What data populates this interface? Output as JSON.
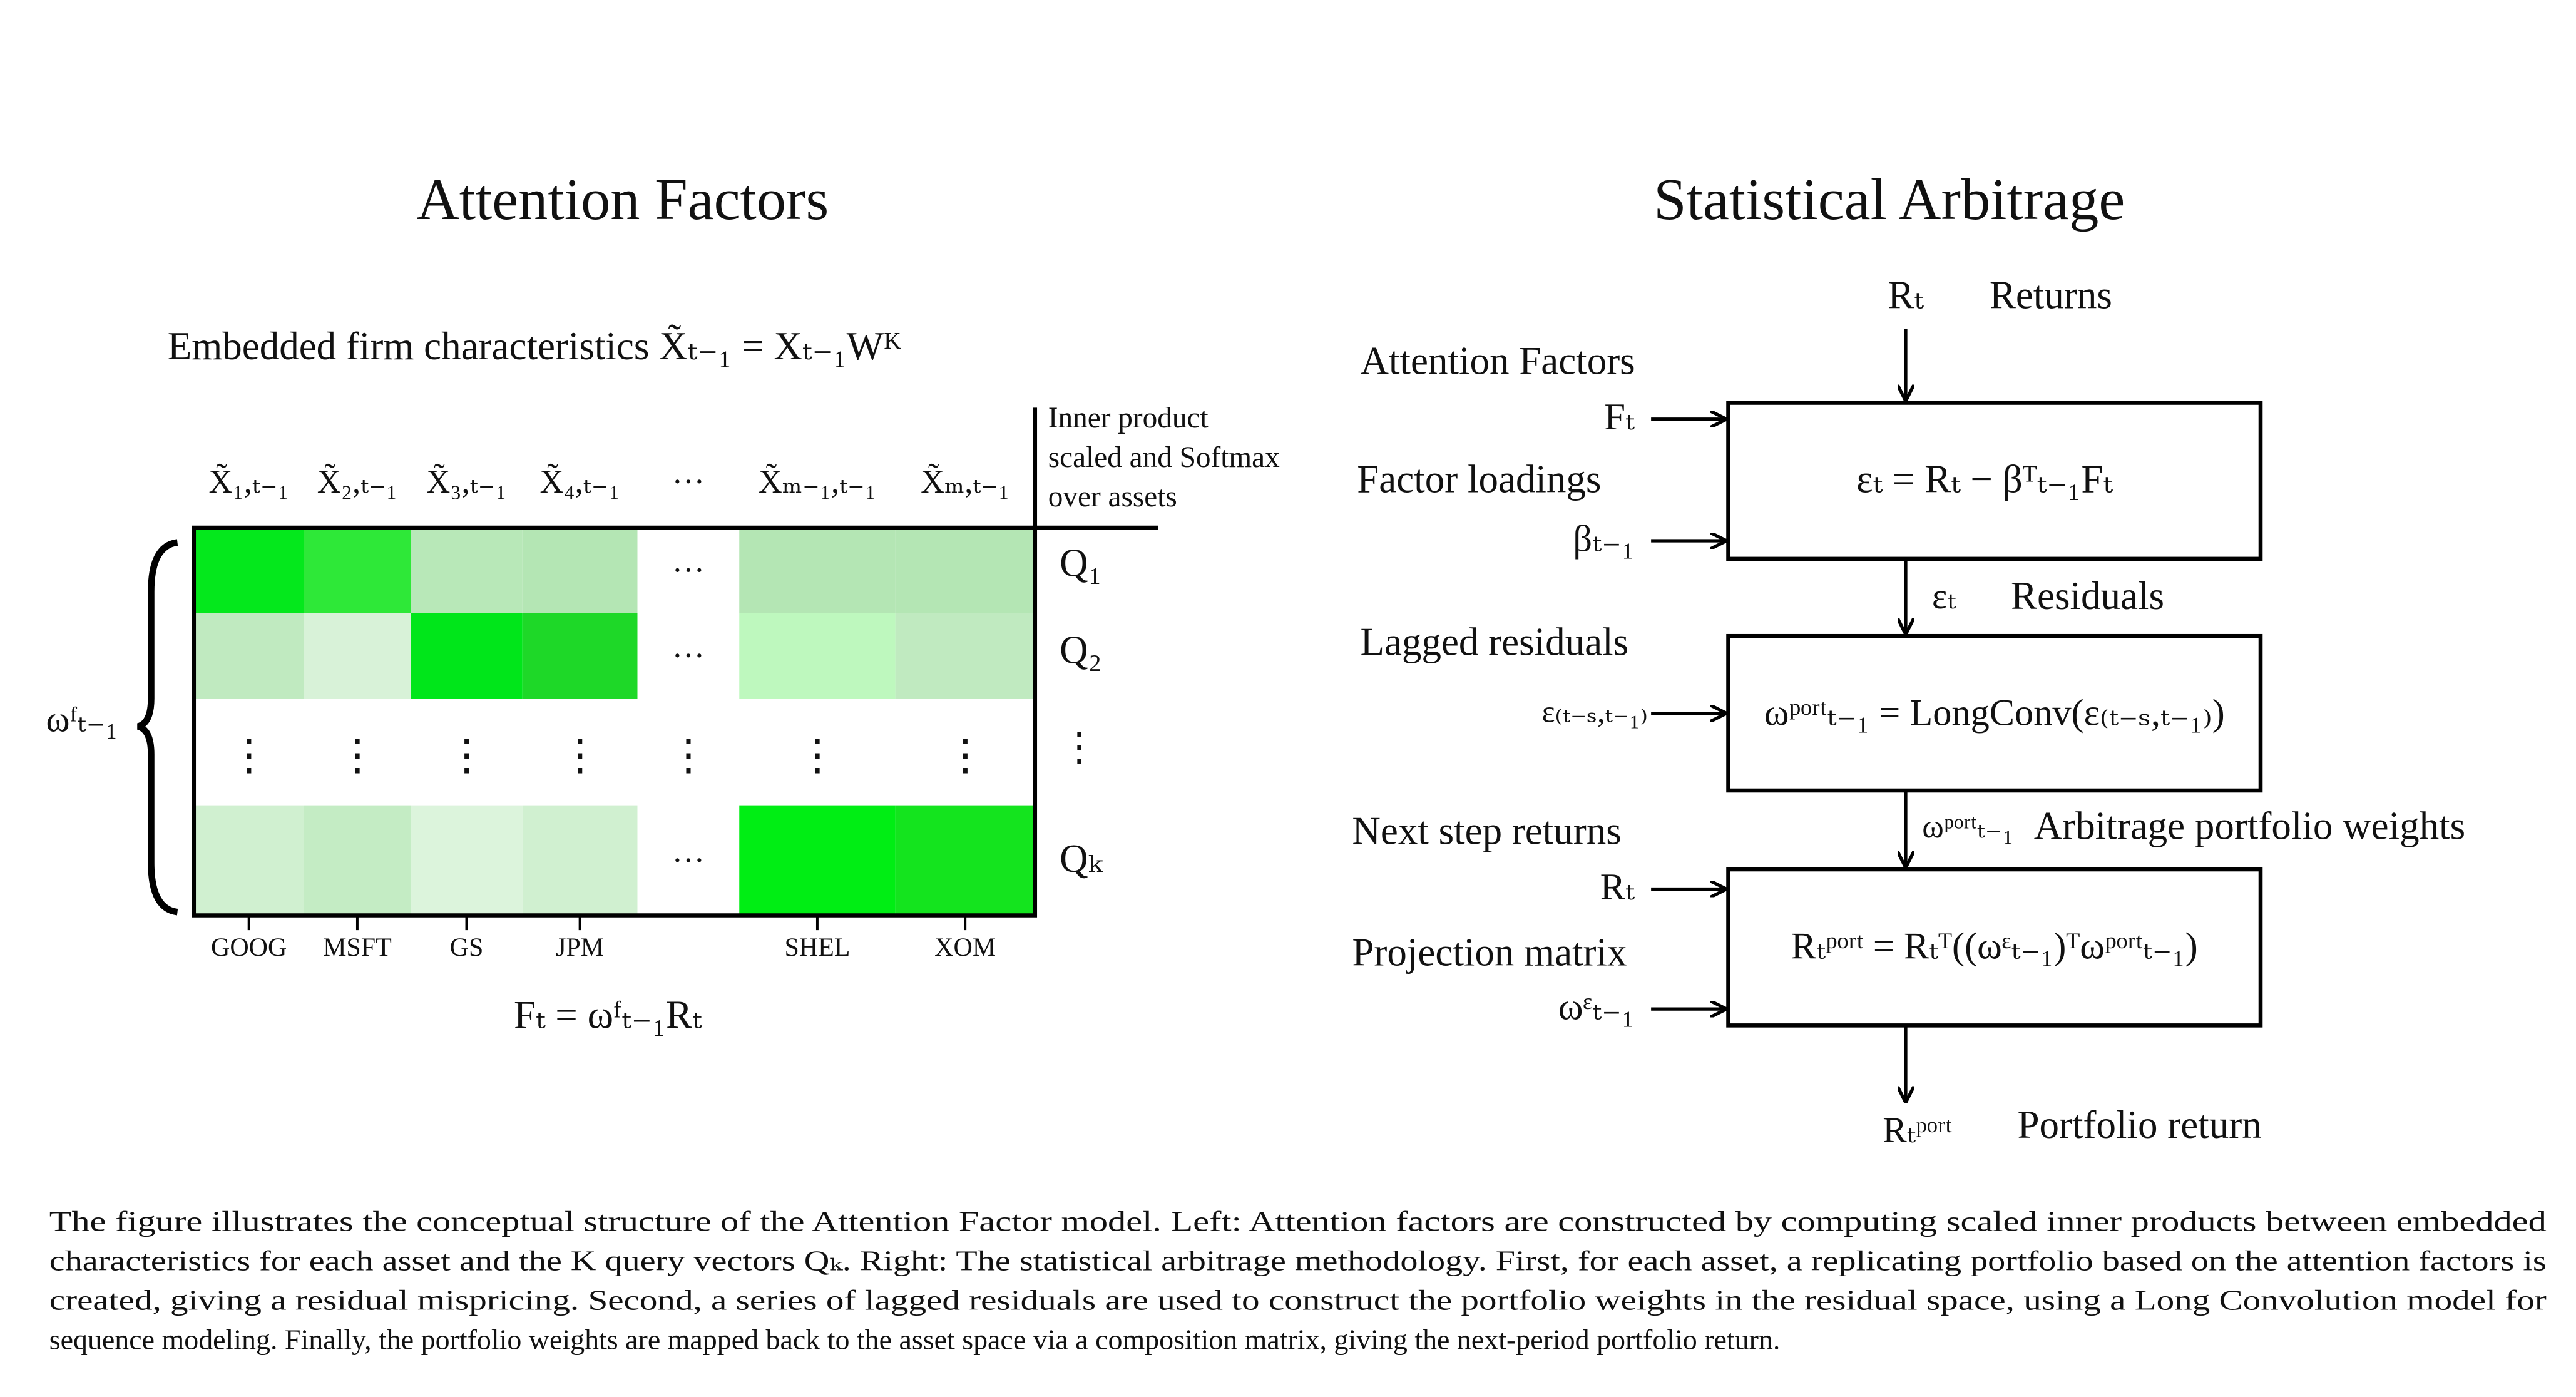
{
  "left": {
    "title": "Attention Factors",
    "embed_label": "Embedded firm characteristics  X̃ₜ₋₁ = Xₜ₋₁Wᴷ",
    "column_headers": [
      "X̃₁,ₜ₋₁",
      "X̃₂,ₜ₋₁",
      "X̃₃,ₜ₋₁",
      "X̃₄,ₜ₋₁",
      "···",
      "X̃ₘ₋₁,ₜ₋₁",
      "X̃ₘ,ₜ₋₁"
    ],
    "side_note": [
      "Inner product",
      "scaled and Softmax",
      "over assets"
    ],
    "queries": [
      "Q₁",
      "Q₂",
      "⋮",
      "Qₖ"
    ],
    "assets": [
      "GOOG",
      "MSFT",
      "GS",
      "JPM",
      "SHEL",
      "XOM"
    ],
    "row_dots": "···",
    "col_dots": "⋮",
    "cell_colors": [
      [
        "#04e81c",
        "#2ee838",
        "#b8e8b8",
        "#b4e6b4",
        "#ffffff",
        "#b4e6b4",
        "#b4e6b4"
      ],
      [
        "#c0eac0",
        "#d8f2d8",
        "#00e61a",
        "#1ed828",
        "#ffffff",
        "#bef8be",
        "#c0eac0"
      ],
      [
        "#d0f0d0",
        "#c4ecc4",
        "#dcf4dc",
        "#d0f0d0",
        "#ffffff",
        "#00ee14",
        "#14e41e"
      ]
    ],
    "brace_label": "ωᶠₜ₋₁",
    "formula": "Fₜ = ωᶠₜ₋₁Rₜ"
  },
  "right": {
    "title": "Statistical Arbitrage",
    "top_input": {
      "symbol": "Rₜ",
      "label": "Returns"
    },
    "inputs": [
      {
        "label": "Attention Factors",
        "symbol": "Fₜ"
      },
      {
        "label": "Factor loadings",
        "symbol": "βₜ₋₁"
      },
      {
        "label": "Lagged residuals",
        "symbol": "ε₍ₜ₋ₛ,ₜ₋₁₎"
      },
      {
        "label": "Next step returns",
        "symbol": "Rₜ"
      },
      {
        "label": "Projection matrix",
        "symbol": "ωᵋₜ₋₁"
      }
    ],
    "boxes": [
      "εₜ = Rₜ − βᵀₜ₋₁Fₜ",
      "ωᵖᵒʳᵗₜ₋₁ = LongConv(ε₍ₜ₋ₛ,ₜ₋₁₎)",
      "Rₜᵖᵒʳᵗ = Rₜᵀ((ωᵋₜ₋₁)ᵀωᵖᵒʳᵗₜ₋₁)"
    ],
    "links": [
      {
        "symbol": "εₜ",
        "label": "Residuals"
      },
      {
        "symbol": "ωᵖᵒʳᵗₜ₋₁",
        "label": "Arbitrage portfolio weights"
      },
      {
        "symbol": "Rₜᵖᵒʳᵗ",
        "label": "Portfolio return"
      }
    ]
  },
  "caption": [
    "The figure illustrates the conceptual structure of the Attention Factor model. Left: Attention factors are constructed by computing scaled inner products between embedded",
    "characteristics for each asset and the K query vectors Qₖ. Right: The statistical arbitrage methodology. First, for each asset, a replicating portfolio based on the attention factors is",
    "created, giving a residual mispricing. Second, a series of lagged residuals are used to construct the portfolio weights in the residual space, using a Long Convolution model for",
    "sequence modeling. Finally, the portfolio weights are mapped back to the asset space via a composition matrix, giving the next-period portfolio return."
  ]
}
